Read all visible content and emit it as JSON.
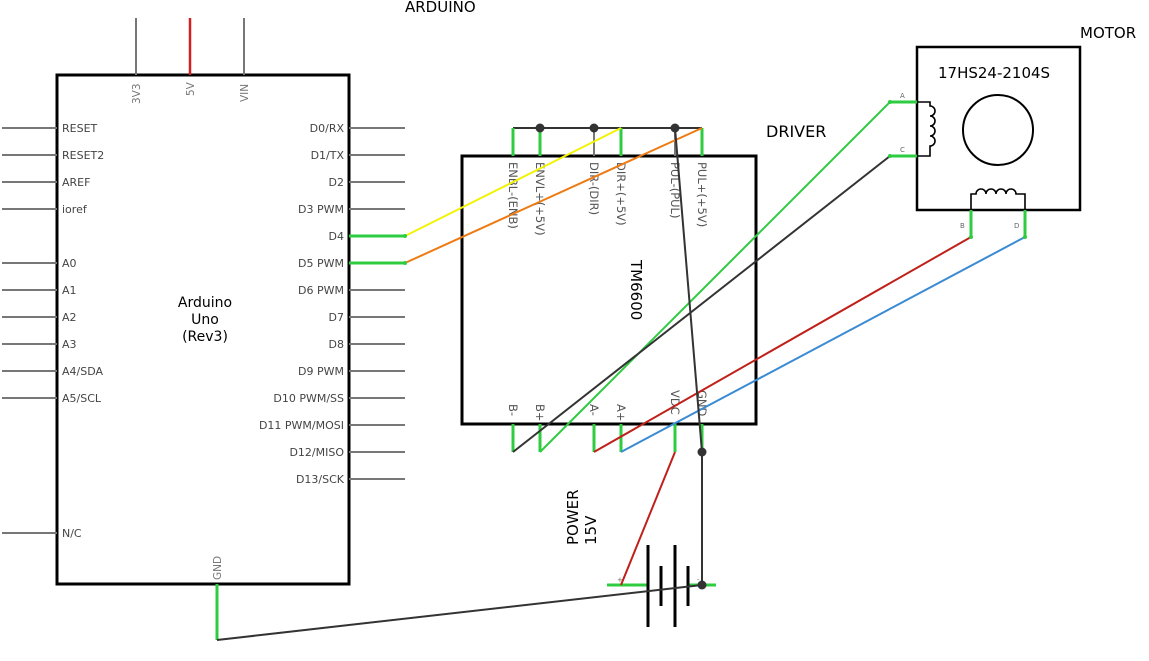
{
  "labels": {
    "arduino": "ARDUINO",
    "driver": "DRIVER",
    "motor": "MOTOR",
    "power_line1": "POWER",
    "power_line2": "15V"
  },
  "arduino": {
    "name_line1": "Arduino",
    "name_line2": "Uno",
    "name_line3": "(Rev3)",
    "top_pins": [
      "3V3",
      "5V",
      "VIN"
    ],
    "left_pins": [
      "RESET",
      "RESET2",
      "AREF",
      "ioref",
      "A0",
      "A1",
      "A2",
      "A3",
      "A4/SDA",
      "A5/SCL",
      "N/C"
    ],
    "right_pins": [
      "D0/RX",
      "D1/TX",
      "D2",
      "D3 PWM",
      "D4",
      "D5 PWM",
      "D6 PWM",
      "D7",
      "D8",
      "D9 PWM",
      "D10 PWM/SS",
      "D11 PWM/MOSI",
      "D12/MISO",
      "D13/SCK"
    ],
    "bottom_pin": "GND"
  },
  "driver": {
    "name": "TM6600",
    "top_pins": [
      "ENBL-(ENB)",
      "ENVL+(+5V)",
      "DIR-(DIR)",
      "DIR+(+5V)",
      "PUL-(PUL)",
      "PUL+(+5V)"
    ],
    "bottom_pins": [
      "B-",
      "B+",
      "A-",
      "A+",
      "VDC",
      "GND"
    ]
  },
  "motor": {
    "model": "17HS24-2104S",
    "pins": [
      "A",
      "C",
      "B",
      "D"
    ]
  },
  "colors": {
    "yellow_wire": "#f2f20a",
    "orange_wire": "#ee7a12",
    "green_wire": "#2ecc40",
    "dark_wire": "#333333",
    "red_wire": "#c0201a",
    "blue_wire": "#3a8ad4",
    "power_5v": "#d02020"
  }
}
